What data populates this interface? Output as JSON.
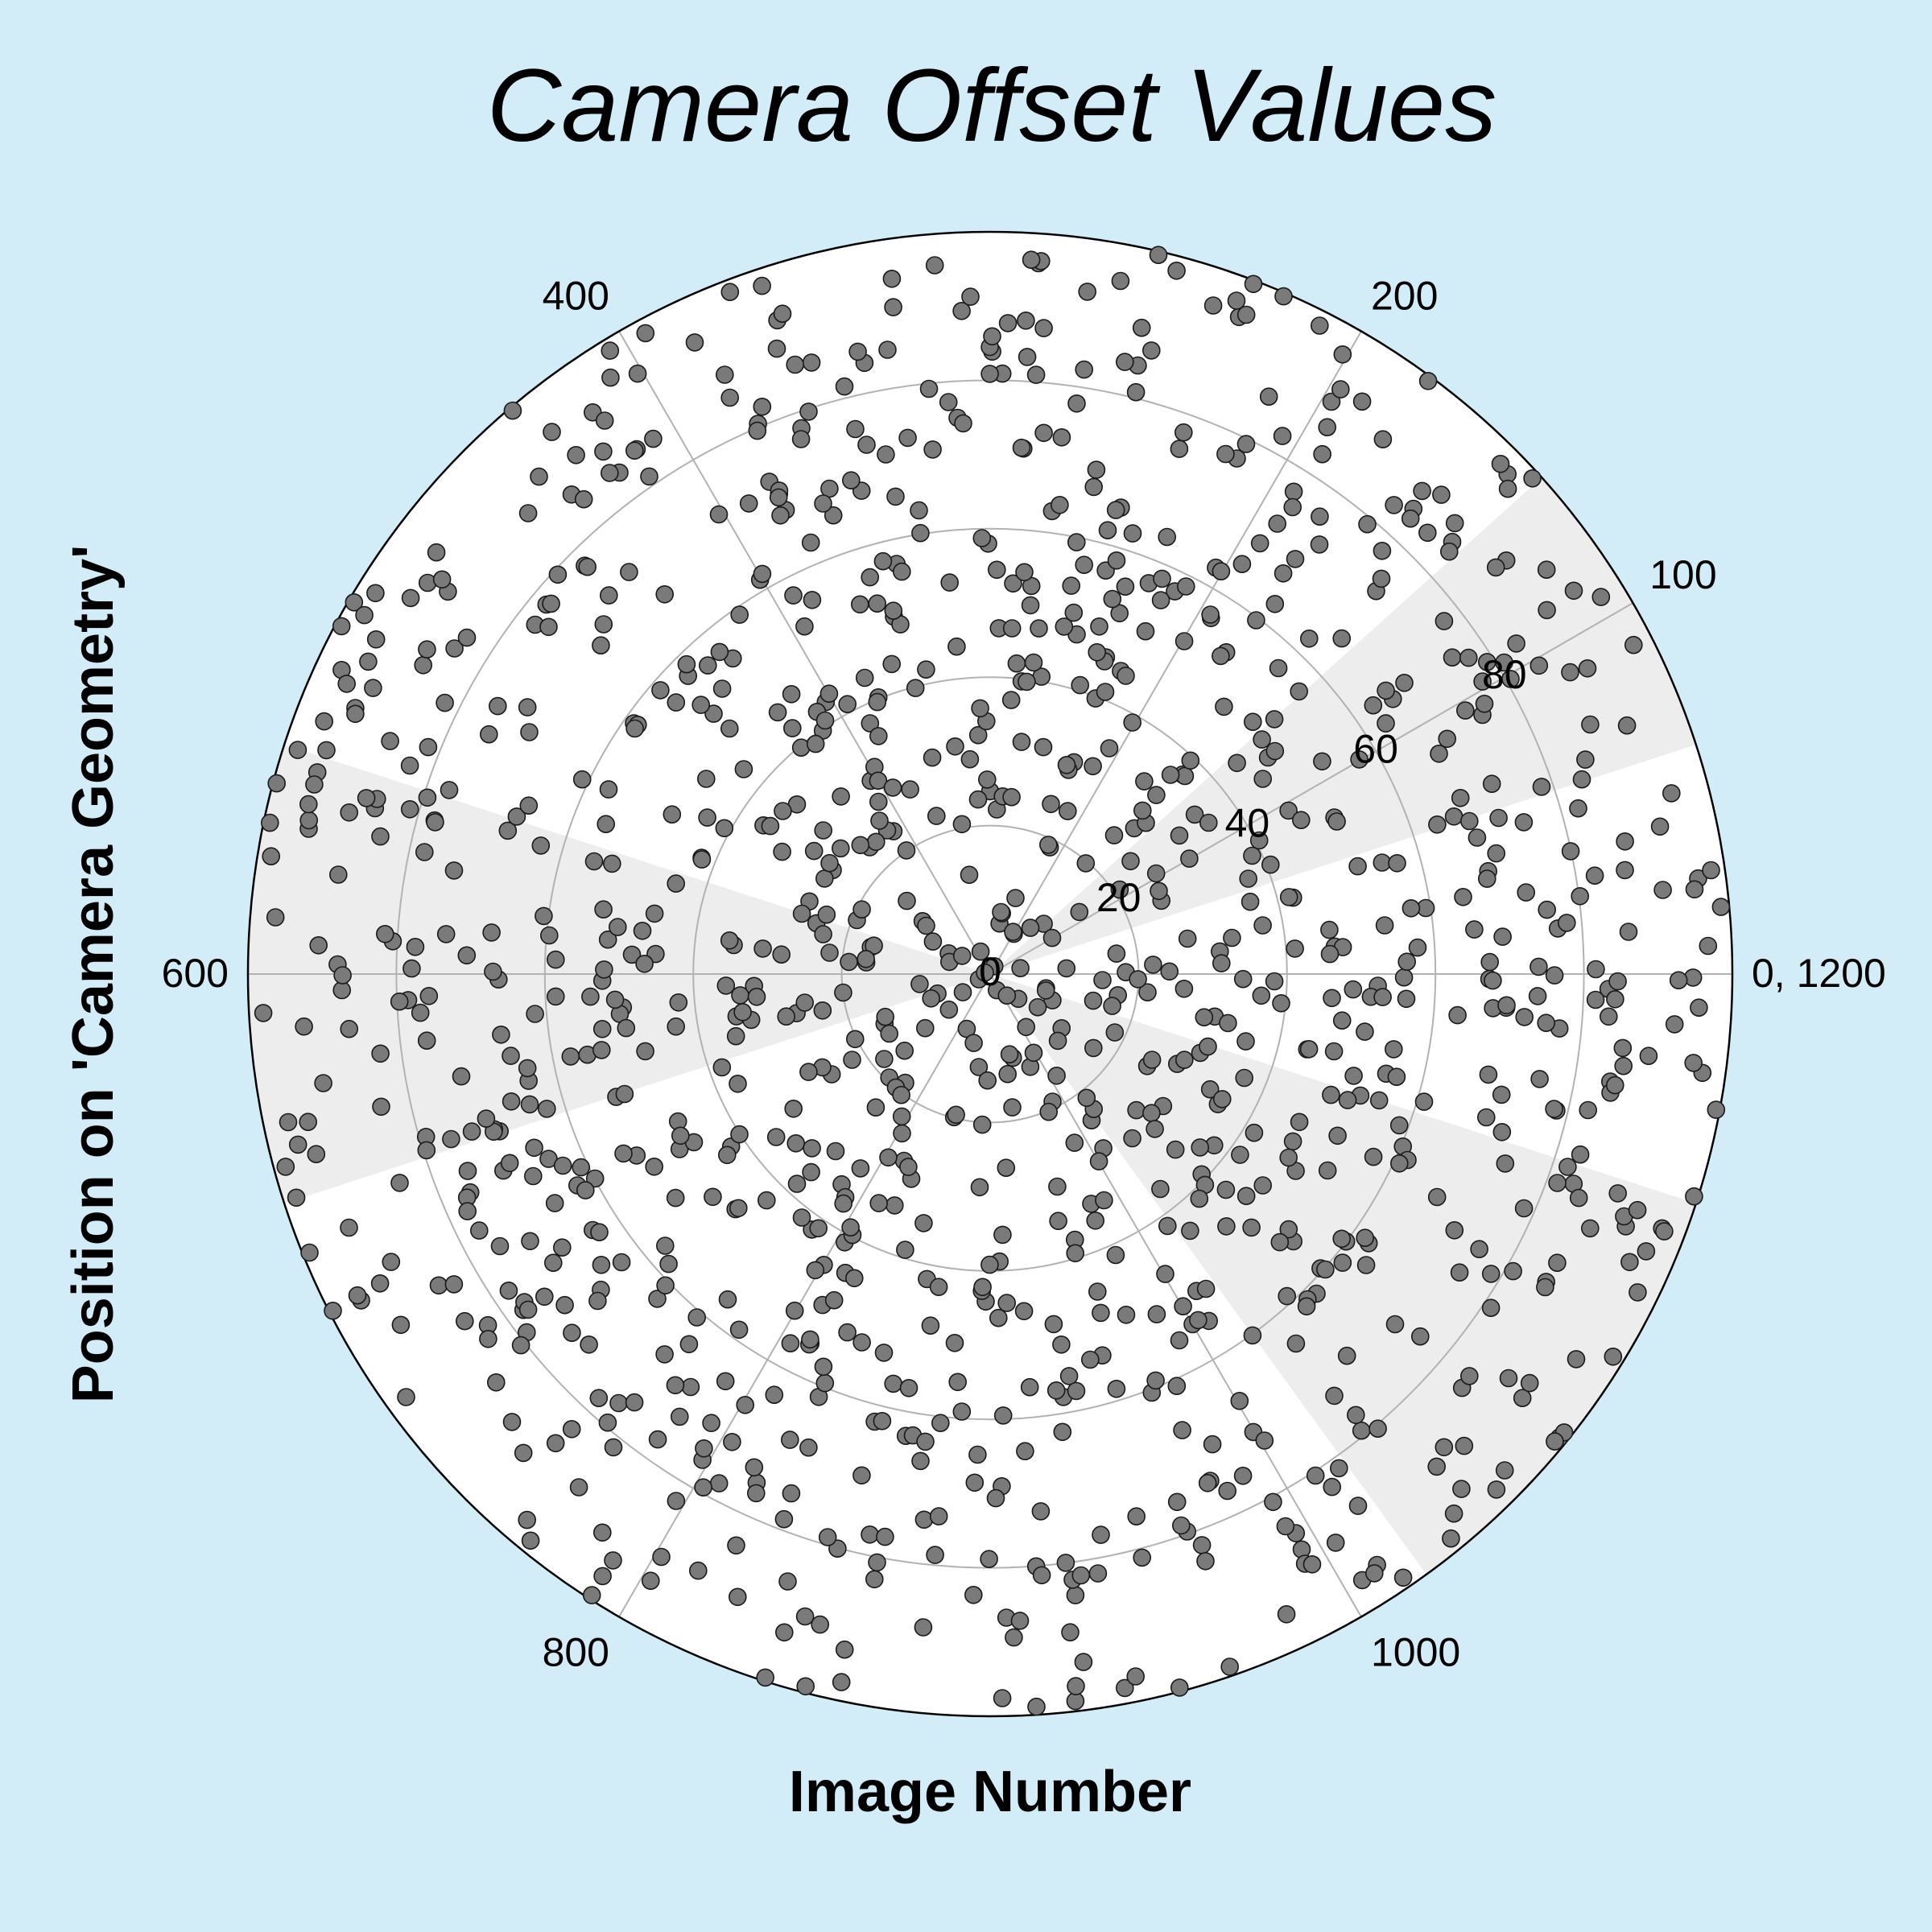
{
  "chart_data": {
    "type": "scatter",
    "projection": "polar",
    "title": "Camera Offset Values",
    "xlabel": "Image Number",
    "ylabel": "Position on 'Camera Geometry'",
    "theta_range": [
      0,
      1200
    ],
    "theta_direction": "counterclockwise",
    "theta_zero_location": "right",
    "theta_ticks": [
      {
        "value": 0,
        "label": "0, 1200"
      },
      {
        "value": 100,
        "label": "100"
      },
      {
        "value": 200,
        "label": "200"
      },
      {
        "value": 400,
        "label": "400"
      },
      {
        "value": 600,
        "label": "600"
      },
      {
        "value": 800,
        "label": "800"
      },
      {
        "value": 1000,
        "label": "1000"
      }
    ],
    "r_range": [
      0,
      100
    ],
    "r_ticks": [
      0,
      20,
      40,
      60,
      80
    ],
    "grid": true,
    "shaded_sectors": [
      [
        60,
        140
      ],
      [
        540,
        660
      ],
      [
        1020,
        1140
      ]
    ],
    "series": [
      {
        "marker": "circle",
        "approx_point_count": 1200,
        "density": "radius roughly uniform in area; more points per unit area near center"
      }
    ]
  },
  "colors": {
    "background": "#d3edf8",
    "plot_background": "#ffffff",
    "shaded_sector": "#ededed",
    "grid": "#b2b2b2",
    "outer_ring": "#000000",
    "marker_fill": "#7a7a7a",
    "marker_edge": "#1a1a1a",
    "text": "#000000"
  }
}
